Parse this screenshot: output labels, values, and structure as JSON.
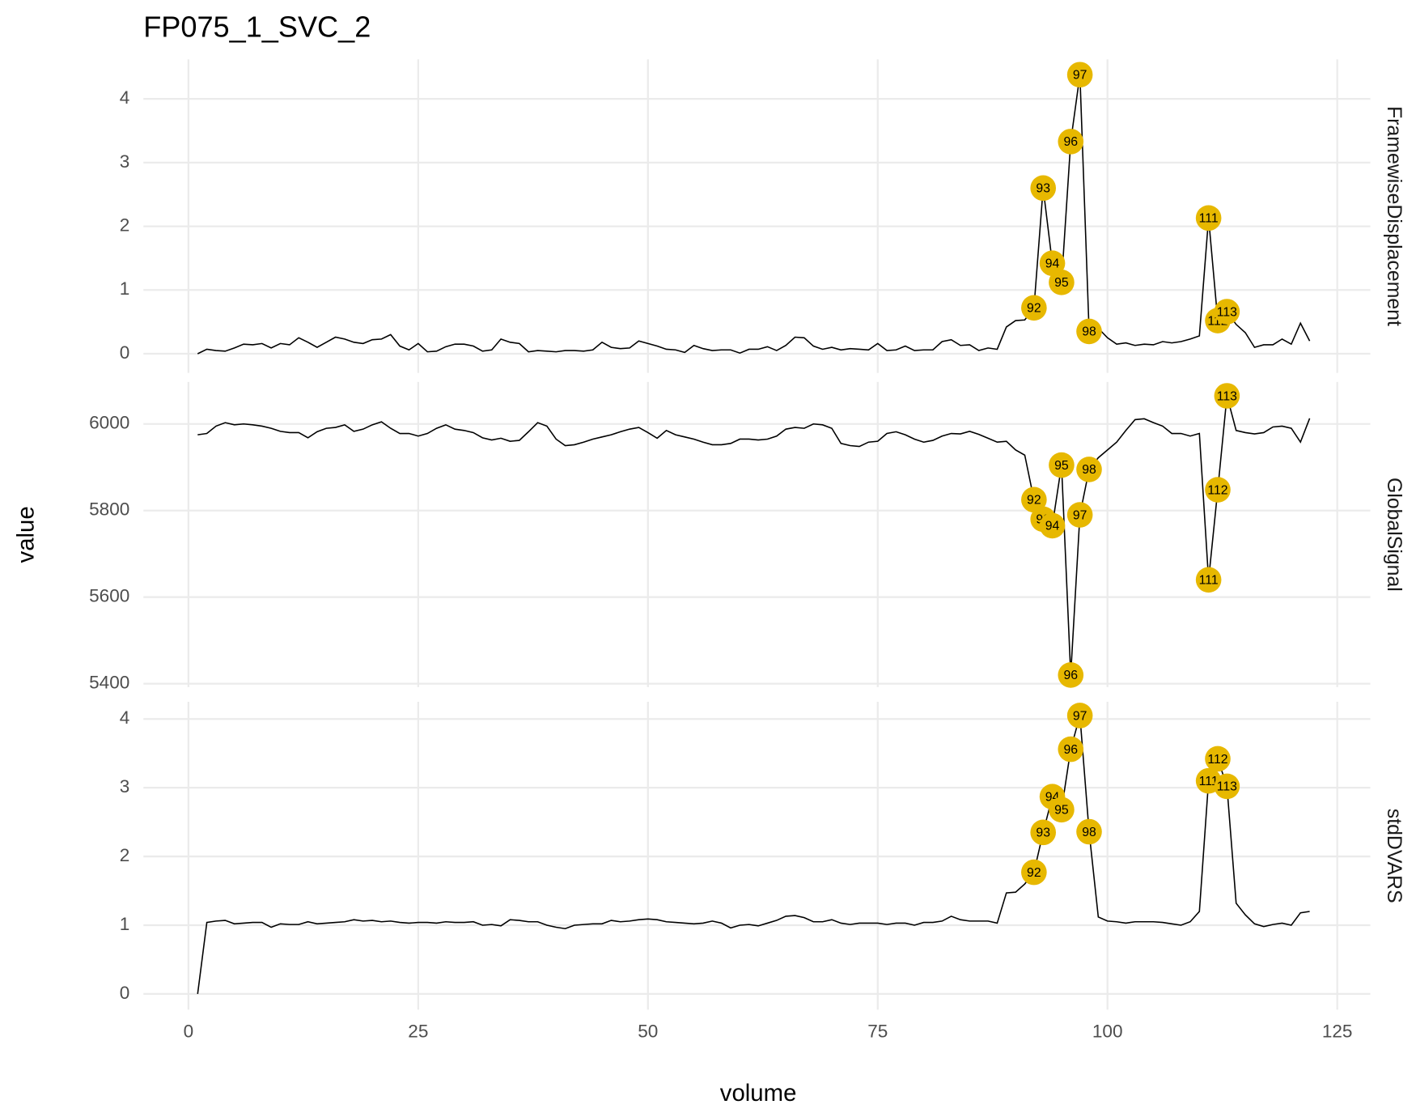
{
  "chart_data": {
    "type": "line",
    "title": "FP075_1_SVC_2",
    "x_label": "volume",
    "y_label": "value",
    "grid": true,
    "line_color": "#000000",
    "point_color": "#E7B800",
    "x": [
      1,
      2,
      3,
      4,
      5,
      6,
      7,
      8,
      9,
      10,
      11,
      12,
      13,
      14,
      15,
      16,
      17,
      18,
      19,
      20,
      21,
      22,
      23,
      24,
      25,
      26,
      27,
      28,
      29,
      30,
      31,
      32,
      33,
      34,
      35,
      36,
      37,
      38,
      39,
      40,
      41,
      42,
      43,
      44,
      45,
      46,
      47,
      48,
      49,
      50,
      51,
      52,
      53,
      54,
      55,
      56,
      57,
      58,
      59,
      60,
      61,
      62,
      63,
      64,
      65,
      66,
      67,
      68,
      69,
      70,
      71,
      72,
      73,
      74,
      75,
      76,
      77,
      78,
      79,
      80,
      81,
      82,
      83,
      84,
      85,
      86,
      87,
      88,
      89,
      90,
      91,
      92,
      93,
      94,
      95,
      96,
      97,
      98,
      99,
      100,
      101,
      102,
      103,
      104,
      105,
      106,
      107,
      108,
      109,
      110,
      111,
      112,
      113,
      114,
      115,
      116,
      117,
      118,
      119,
      120,
      121,
      122
    ],
    "xlim": [
      -4.9,
      128.6
    ],
    "xticks": [
      0,
      25,
      50,
      75,
      100,
      125
    ],
    "panels": [
      {
        "name": "FramewiseDisplacement",
        "ylim": [
          -0.3,
          4.62
        ],
        "yticks": [
          0,
          1,
          2,
          3,
          4
        ],
        "flagged": [
          92,
          93,
          94,
          95,
          96,
          97,
          98,
          111,
          112,
          113
        ],
        "values": [
          0,
          0.07,
          0.05,
          0.04,
          0.09,
          0.15,
          0.14,
          0.16,
          0.09,
          0.16,
          0.14,
          0.25,
          0.18,
          0.1,
          0.18,
          0.26,
          0.23,
          0.18,
          0.16,
          0.22,
          0.23,
          0.3,
          0.12,
          0.06,
          0.16,
          0.03,
          0.04,
          0.11,
          0.15,
          0.15,
          0.12,
          0.04,
          0.06,
          0.23,
          0.18,
          0.16,
          0.03,
          0.05,
          0.04,
          0.03,
          0.05,
          0.05,
          0.04,
          0.06,
          0.18,
          0.1,
          0.08,
          0.09,
          0.2,
          0.16,
          0.12,
          0.07,
          0.06,
          0.02,
          0.13,
          0.08,
          0.05,
          0.06,
          0.06,
          0.01,
          0.07,
          0.07,
          0.11,
          0.05,
          0.13,
          0.26,
          0.25,
          0.12,
          0.07,
          0.1,
          0.06,
          0.08,
          0.07,
          0.06,
          0.16,
          0.05,
          0.06,
          0.12,
          0.05,
          0.06,
          0.06,
          0.19,
          0.22,
          0.13,
          0.14,
          0.05,
          0.09,
          0.07,
          0.42,
          0.52,
          0.53,
          0.72,
          2.6,
          1.42,
          1.12,
          3.33,
          4.38,
          0.35,
          0.4,
          0.25,
          0.15,
          0.17,
          0.13,
          0.15,
          0.14,
          0.19,
          0.17,
          0.19,
          0.23,
          0.28,
          2.13,
          0.52,
          0.66,
          0.46,
          0.33,
          0.1,
          0.14,
          0.14,
          0.23,
          0.15,
          0.48,
          0.2
        ]
      },
      {
        "name": "GlobalSignal",
        "ylim": [
          5392,
          6097
        ],
        "yticks": [
          5400,
          5600,
          5800,
          6000
        ],
        "flagged": [
          92,
          93,
          94,
          95,
          96,
          97,
          98,
          111,
          112,
          113
        ],
        "values": [
          5975,
          5978,
          5995,
          6003,
          5998,
          6000,
          5998,
          5995,
          5990,
          5983,
          5980,
          5980,
          5968,
          5982,
          5990,
          5992,
          5998,
          5983,
          5988,
          5998,
          6005,
          5990,
          5978,
          5978,
          5972,
          5978,
          5990,
          5998,
          5988,
          5985,
          5980,
          5968,
          5963,
          5967,
          5960,
          5962,
          5982,
          6003,
          5995,
          5965,
          5950,
          5952,
          5958,
          5965,
          5970,
          5975,
          5982,
          5988,
          5992,
          5980,
          5967,
          5985,
          5975,
          5970,
          5965,
          5958,
          5952,
          5952,
          5955,
          5965,
          5965,
          5963,
          5965,
          5972,
          5988,
          5992,
          5990,
          6000,
          5998,
          5990,
          5955,
          5950,
          5948,
          5958,
          5960,
          5978,
          5982,
          5975,
          5965,
          5958,
          5962,
          5972,
          5978,
          5977,
          5983,
          5976,
          5967,
          5958,
          5960,
          5940,
          5928,
          5825,
          5780,
          5765,
          5905,
          5420,
          5790,
          5895,
          5922,
          5940,
          5958,
          5985,
          6010,
          6012,
          6003,
          5995,
          5978,
          5978,
          5972,
          5978,
          5640,
          5848,
          6065,
          5985,
          5980,
          5977,
          5980,
          5993,
          5995,
          5990,
          5958,
          6013
        ]
      },
      {
        "name": "stdDVARS",
        "ylim": [
          -0.23,
          4.25
        ],
        "yticks": [
          0,
          1,
          2,
          3,
          4
        ],
        "flagged": [
          92,
          93,
          94,
          95,
          96,
          97,
          98,
          111,
          112,
          113
        ],
        "values": [
          0,
          1.04,
          1.06,
          1.07,
          1.02,
          1.03,
          1.04,
          1.04,
          0.97,
          1.02,
          1.01,
          1.01,
          1.05,
          1.02,
          1.03,
          1.04,
          1.05,
          1.08,
          1.06,
          1.07,
          1.05,
          1.06,
          1.04,
          1.03,
          1.04,
          1.04,
          1.03,
          1.05,
          1.04,
          1.04,
          1.05,
          1.0,
          1.01,
          0.99,
          1.08,
          1.07,
          1.05,
          1.05,
          1.0,
          0.97,
          0.95,
          1.0,
          1.01,
          1.02,
          1.02,
          1.07,
          1.05,
          1.06,
          1.08,
          1.09,
          1.08,
          1.05,
          1.04,
          1.03,
          1.02,
          1.03,
          1.06,
          1.03,
          0.96,
          1.0,
          1.01,
          0.99,
          1.03,
          1.07,
          1.13,
          1.14,
          1.11,
          1.05,
          1.05,
          1.08,
          1.03,
          1.01,
          1.03,
          1.03,
          1.03,
          1.01,
          1.03,
          1.03,
          1.0,
          1.04,
          1.04,
          1.06,
          1.13,
          1.08,
          1.06,
          1.06,
          1.06,
          1.03,
          1.47,
          1.48,
          1.6,
          1.77,
          2.35,
          2.87,
          2.68,
          3.56,
          4.05,
          2.36,
          1.12,
          1.06,
          1.05,
          1.03,
          1.05,
          1.05,
          1.05,
          1.04,
          1.02,
          1.0,
          1.05,
          1.2,
          3.1,
          3.42,
          3.02,
          1.32,
          1.15,
          1.02,
          0.98,
          1.01,
          1.03,
          1.0,
          1.18,
          1.2
        ]
      }
    ]
  }
}
